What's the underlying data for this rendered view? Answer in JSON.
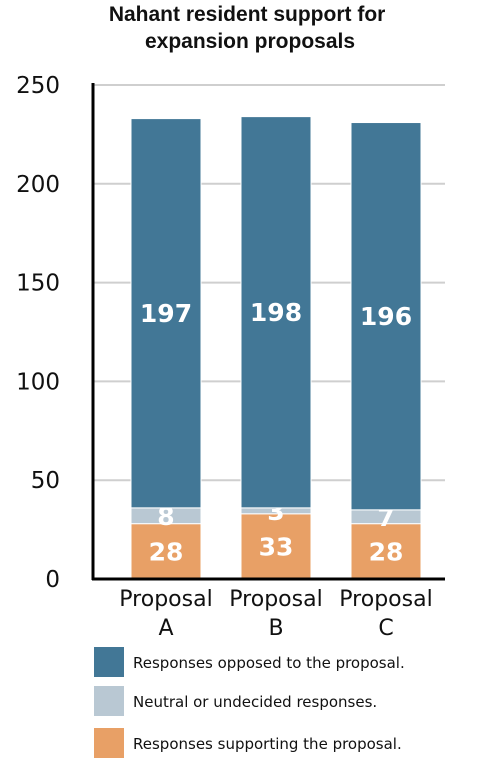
{
  "chart_data": {
    "type": "bar",
    "stacked": true,
    "title": "Nahant resident support for expansion proposals",
    "categories": [
      "Proposal A",
      "Proposal B",
      "Proposal C"
    ],
    "series": [
      {
        "name": "Responses supporting the proposal.",
        "values": [
          28,
          33,
          28
        ],
        "color": "#e8a066"
      },
      {
        "name": "Neutral or undecided responses.",
        "values": [
          8,
          3,
          7
        ],
        "color": "#b9c8d3"
      },
      {
        "name": "Responses opposed to the proposal.",
        "values": [
          197,
          198,
          196
        ],
        "color": "#427796"
      }
    ],
    "ylim": [
      0,
      250
    ],
    "yticks": [
      0,
      50,
      100,
      150,
      200,
      250
    ],
    "xlabel": "",
    "ylabel": "",
    "grid": true,
    "legend_position": "bottom"
  }
}
